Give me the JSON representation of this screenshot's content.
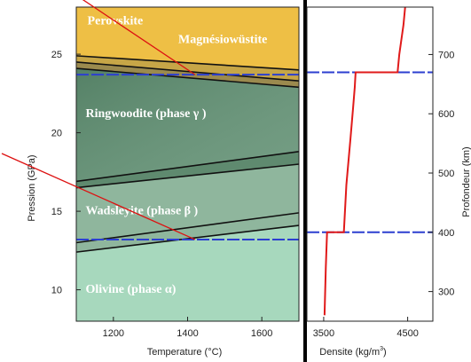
{
  "chart_data": [
    {
      "type": "area",
      "title": "",
      "xlabel": "Temperature (°C)",
      "ylabel": "Pression (GPa)",
      "xlim": [
        1100,
        1700
      ],
      "ylim": [
        8,
        28
      ],
      "xticks": [
        1200,
        1400,
        1600
      ],
      "yticks": [
        10,
        15,
        20,
        25
      ],
      "phase_labels": [
        {
          "text": "Perovskite",
          "x": 1130,
          "y": 26.9
        },
        {
          "text": "Magnésiowüstite",
          "x": 1375,
          "y": 25.7
        },
        {
          "text": "Ringwoodite (phase γ )",
          "x": 1125,
          "y": 21.0
        },
        {
          "text": "Wadsleyite (phase β )",
          "x": 1125,
          "y": 14.8
        },
        {
          "text": "Olivine (phase α)",
          "x": 1125,
          "y": 9.8
        }
      ],
      "phase_colors": {
        "perovskite": "#eebf45",
        "ringwoodite": "#5f8a6f",
        "wadsleyite": "#8fb69d",
        "olivine": "#a7d8bd",
        "boundary": "#111111"
      },
      "boundaries": [
        {
          "name": "perovskite-mw-upper",
          "points": [
            [
              1100,
              24.9
            ],
            [
              1700,
              24.0
            ]
          ]
        },
        {
          "name": "perovskite-mw-lower",
          "points": [
            [
              1100,
              24.5
            ],
            [
              1700,
              23.3
            ]
          ]
        },
        {
          "name": "ringwoodite-top",
          "points": [
            [
              1100,
              24.1
            ],
            [
              1700,
              22.9
            ]
          ]
        },
        {
          "name": "wadsleyite-ringwoodite-a",
          "points": [
            [
              1100,
              16.9
            ],
            [
              1700,
              18.8
            ]
          ]
        },
        {
          "name": "wadsleyite-ringwoodite-b",
          "points": [
            [
              1100,
              16.5
            ],
            [
              1700,
              18.0
            ]
          ]
        },
        {
          "name": "olivine-wadsleyite-a",
          "points": [
            [
              1100,
              13.0
            ],
            [
              1700,
              14.9
            ]
          ]
        },
        {
          "name": "olivine-wadsleyite-b",
          "points": [
            [
              1100,
              12.4
            ],
            [
              1700,
              14.1
            ]
          ]
        }
      ],
      "reference_lines": [
        {
          "name": "660-km discontinuity",
          "y": 23.7,
          "color": "#2c3fd0"
        },
        {
          "name": "410-km discontinuity",
          "y": 13.2,
          "color": "#2c3fd0"
        }
      ],
      "pointer_color": "#dd1111"
    },
    {
      "type": "line",
      "title": "",
      "xlabel": "Densite (kg/m",
      "xlabel_sup": "3",
      "xlabel_end": ")",
      "ylabel": "Profondeur (km)",
      "xlim": [
        3300,
        4800
      ],
      "ylim": [
        250,
        780
      ],
      "xticks": [
        3500,
        4500
      ],
      "yticks": [
        300,
        400,
        500,
        600,
        700
      ],
      "series": [
        {
          "color": "#e01a1a",
          "points": [
            [
              3510,
              260
            ],
            [
              3525,
              340
            ],
            [
              3540,
              400
            ],
            [
              3740,
              400
            ],
            [
              3770,
              480
            ],
            [
              3820,
              560
            ],
            [
              3850,
              610
            ],
            [
              3870,
              645
            ],
            [
              3880,
              670
            ],
            [
              4380,
              670
            ],
            [
              4400,
              700
            ],
            [
              4450,
              750
            ],
            [
              4470,
              780
            ]
          ]
        }
      ],
      "reference_lines": [
        {
          "name": "400 km",
          "y": 400,
          "color": "#2c3fd0"
        },
        {
          "name": "670 km",
          "y": 670,
          "color": "#2c3fd0"
        }
      ]
    }
  ]
}
